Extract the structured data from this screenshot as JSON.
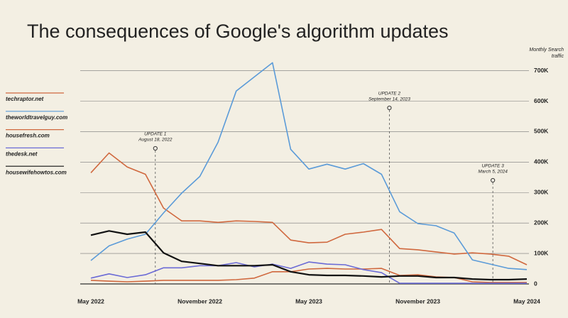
{
  "chart_data": {
    "type": "line",
    "title": "The consequences of Google's algorithm updates",
    "y_axis_title": "Monthly Search traffic",
    "categories": [
      "May 2022",
      null,
      null,
      null,
      null,
      null,
      "November 2022",
      null,
      null,
      null,
      null,
      null,
      "May 2023",
      null,
      null,
      null,
      null,
      null,
      "November 2023",
      null,
      null,
      null,
      null,
      null,
      "May 2024"
    ],
    "ylim": [
      0,
      720000
    ],
    "yticks": [
      0,
      {
        "value": 100000,
        "label": "100K"
      },
      {
        "value": 200000,
        "label": "200K"
      },
      {
        "value": 300000,
        "label": "300K"
      },
      {
        "value": 400000,
        "label": "400K"
      },
      {
        "value": 500000,
        "label": "500K"
      },
      {
        "value": 600000,
        "label": "600K"
      },
      {
        "value": 700000,
        "label": "700K"
      }
    ],
    "grid": true,
    "legend": "left",
    "series": [
      {
        "name": "techraptor.net",
        "color": "#d0683e",
        "values": [
          365000,
          430000,
          384000,
          360000,
          249000,
          207000,
          207000,
          202000,
          207000,
          205000,
          202000,
          144000,
          135000,
          137000,
          163000,
          170000,
          179000,
          116000,
          112000,
          105000,
          98000,
          102000,
          98000,
          91000,
          63000
        ]
      },
      {
        "name": "theworldtravelguy.com",
        "color": "#5b9bd8",
        "values": [
          77000,
          125000,
          147000,
          163000,
          233000,
          298000,
          353000,
          465000,
          633000,
          680000,
          726000,
          442000,
          377000,
          393000,
          377000,
          395000,
          360000,
          237000,
          198000,
          191000,
          167000,
          79000,
          65000,
          51000,
          47000
        ]
      },
      {
        "name": "housefresh.com",
        "color": "#d0683e",
        "values": [
          12000,
          9000,
          7000,
          9000,
          12000,
          12000,
          12000,
          12000,
          14000,
          19000,
          40000,
          40000,
          49000,
          51000,
          49000,
          49000,
          51000,
          28000,
          30000,
          23000,
          21000,
          7000,
          5000,
          5000,
          5000
        ]
      },
      {
        "name": "thedesk.net",
        "color": "#6b6bd6",
        "values": [
          19000,
          33000,
          21000,
          30000,
          53000,
          53000,
          60000,
          60000,
          70000,
          56000,
          65000,
          51000,
          72000,
          65000,
          63000,
          47000,
          37000,
          2000,
          2000,
          2000,
          2000,
          2000,
          2000,
          2000,
          2000
        ]
      },
      {
        "name": "housewifehowtos.com",
        "color": "#111111",
        "values": [
          160000,
          174000,
          163000,
          170000,
          102000,
          74000,
          67000,
          60000,
          60000,
          60000,
          63000,
          40000,
          30000,
          28000,
          28000,
          26000,
          23000,
          26000,
          26000,
          21000,
          21000,
          16000,
          14000,
          14000,
          16000
        ]
      }
    ],
    "annotations": [
      {
        "title": "UPDATE 1",
        "date": "August 18, 2022"
      },
      {
        "title": "UPDATE 2",
        "date": "September 14, 2023"
      },
      {
        "title": "UPDATE 3",
        "date": "March 5, 2024"
      }
    ]
  }
}
